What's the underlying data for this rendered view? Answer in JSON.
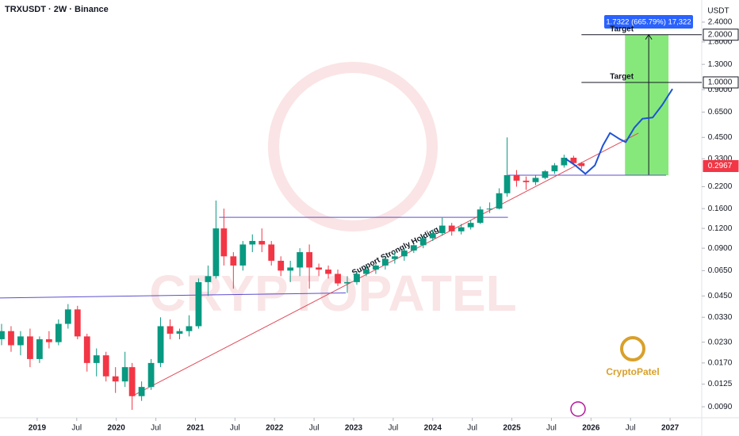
{
  "chart_data": {
    "type": "candlestick",
    "title": "TRXUSDT · 2W · Binance",
    "axis_unit": "USDT",
    "log_scale": true,
    "up_color": "#089981",
    "down_color": "#f23645",
    "x": [
      2018.55,
      2018.67,
      2018.79,
      2018.91,
      2019.03,
      2019.15,
      2019.27,
      2019.39,
      2019.51,
      2019.63,
      2019.75,
      2019.87,
      2019.99,
      2020.11,
      2020.2,
      2020.32,
      2020.44,
      2020.56,
      2020.68,
      2020.8,
      2020.92,
      2021.04,
      2021.16,
      2021.26,
      2021.36,
      2021.48,
      2021.6,
      2021.72,
      2021.84,
      2021.96,
      2022.08,
      2022.2,
      2022.32,
      2022.44,
      2022.56,
      2022.68,
      2022.8,
      2022.92,
      2023.04,
      2023.16,
      2023.28,
      2023.4,
      2023.52,
      2023.64,
      2023.76,
      2023.88,
      2024.0,
      2024.12,
      2024.24,
      2024.36,
      2024.48,
      2024.6,
      2024.72,
      2024.84,
      2024.94,
      2025.06,
      2025.18,
      2025.3,
      2025.42,
      2025.54,
      2025.66,
      2025.78,
      2025.88
    ],
    "candles": [
      [
        0.024,
        0.03,
        0.022,
        0.027
      ],
      [
        0.027,
        0.029,
        0.02,
        0.022
      ],
      [
        0.022,
        0.027,
        0.019,
        0.025
      ],
      [
        0.025,
        0.028,
        0.016,
        0.018
      ],
      [
        0.018,
        0.025,
        0.017,
        0.024
      ],
      [
        0.024,
        0.027,
        0.021,
        0.023
      ],
      [
        0.023,
        0.032,
        0.022,
        0.03
      ],
      [
        0.03,
        0.04,
        0.028,
        0.037
      ],
      [
        0.037,
        0.039,
        0.024,
        0.025
      ],
      [
        0.025,
        0.026,
        0.015,
        0.017
      ],
      [
        0.017,
        0.021,
        0.014,
        0.019
      ],
      [
        0.019,
        0.02,
        0.013,
        0.014
      ],
      [
        0.014,
        0.016,
        0.011,
        0.013
      ],
      [
        0.013,
        0.02,
        0.012,
        0.016
      ],
      [
        0.016,
        0.017,
        0.0086,
        0.0105
      ],
      [
        0.0105,
        0.013,
        0.0098,
        0.012
      ],
      [
        0.012,
        0.018,
        0.0115,
        0.017
      ],
      [
        0.017,
        0.033,
        0.016,
        0.029
      ],
      [
        0.029,
        0.032,
        0.024,
        0.026
      ],
      [
        0.026,
        0.028,
        0.024,
        0.027
      ],
      [
        0.027,
        0.034,
        0.025,
        0.029
      ],
      [
        0.029,
        0.058,
        0.028,
        0.055
      ],
      [
        0.055,
        0.07,
        0.045,
        0.06
      ],
      [
        0.06,
        0.18,
        0.058,
        0.12
      ],
      [
        0.12,
        0.16,
        0.07,
        0.08
      ],
      [
        0.08,
        0.085,
        0.05,
        0.07
      ],
      [
        0.07,
        0.1,
        0.065,
        0.095
      ],
      [
        0.095,
        0.11,
        0.085,
        0.1
      ],
      [
        0.1,
        0.12,
        0.085,
        0.095
      ],
      [
        0.095,
        0.1,
        0.07,
        0.075
      ],
      [
        0.075,
        0.08,
        0.06,
        0.065
      ],
      [
        0.065,
        0.075,
        0.055,
        0.068
      ],
      [
        0.068,
        0.09,
        0.06,
        0.085
      ],
      [
        0.085,
        0.095,
        0.05,
        0.068
      ],
      [
        0.068,
        0.072,
        0.06,
        0.066
      ],
      [
        0.066,
        0.07,
        0.058,
        0.062
      ],
      [
        0.062,
        0.066,
        0.052,
        0.054
      ],
      [
        0.054,
        0.06,
        0.047,
        0.055
      ],
      [
        0.055,
        0.064,
        0.053,
        0.062
      ],
      [
        0.062,
        0.07,
        0.06,
        0.066
      ],
      [
        0.066,
        0.072,
        0.062,
        0.07
      ],
      [
        0.07,
        0.08,
        0.066,
        0.077
      ],
      [
        0.077,
        0.086,
        0.072,
        0.08
      ],
      [
        0.08,
        0.09,
        0.075,
        0.087
      ],
      [
        0.087,
        0.096,
        0.084,
        0.094
      ],
      [
        0.094,
        0.108,
        0.09,
        0.104
      ],
      [
        0.104,
        0.118,
        0.1,
        0.112
      ],
      [
        0.112,
        0.14,
        0.108,
        0.125
      ],
      [
        0.125,
        0.13,
        0.108,
        0.115
      ],
      [
        0.115,
        0.128,
        0.11,
        0.122
      ],
      [
        0.122,
        0.135,
        0.118,
        0.13
      ],
      [
        0.13,
        0.165,
        0.128,
        0.158
      ],
      [
        0.158,
        0.175,
        0.15,
        0.16
      ],
      [
        0.16,
        0.215,
        0.158,
        0.2
      ],
      [
        0.2,
        0.45,
        0.19,
        0.26
      ],
      [
        0.26,
        0.28,
        0.22,
        0.24
      ],
      [
        0.24,
        0.255,
        0.21,
        0.235
      ],
      [
        0.235,
        0.26,
        0.225,
        0.25
      ],
      [
        0.25,
        0.28,
        0.245,
        0.275
      ],
      [
        0.275,
        0.31,
        0.265,
        0.3
      ],
      [
        0.3,
        0.35,
        0.29,
        0.335
      ],
      [
        0.335,
        0.345,
        0.3,
        0.31
      ],
      [
        0.31,
        0.315,
        0.285,
        0.2967
      ]
    ],
    "xlim": [
      2018.53,
      2027.4
    ],
    "ylim": [
      0.00767,
      3.31
    ],
    "xticks": [
      {
        "value": 2019,
        "label": "2019"
      },
      {
        "value": 2019.5,
        "label": "Jul"
      },
      {
        "value": 2020,
        "label": "2020"
      },
      {
        "value": 2020.5,
        "label": "Jul"
      },
      {
        "value": 2021,
        "label": "2021"
      },
      {
        "value": 2021.5,
        "label": "Jul"
      },
      {
        "value": 2022,
        "label": "2022"
      },
      {
        "value": 2022.5,
        "label": "Jul"
      },
      {
        "value": 2023,
        "label": "2023"
      },
      {
        "value": 2023.5,
        "label": "Jul"
      },
      {
        "value": 2024,
        "label": "2024"
      },
      {
        "value": 2024.5,
        "label": "Jul"
      },
      {
        "value": 2025,
        "label": "2025"
      },
      {
        "value": 2025.5,
        "label": "Jul"
      },
      {
        "value": 2026,
        "label": "2026"
      },
      {
        "value": 2026.5,
        "label": "Jul"
      },
      {
        "value": 2027,
        "label": "2027"
      }
    ],
    "yticks": [
      {
        "value": 2.4,
        "label": "2.4000"
      },
      {
        "value": 1.8,
        "label": "1.8000"
      },
      {
        "value": 1.3,
        "label": "1.3000"
      },
      {
        "value": 0.9,
        "label": "0.9000"
      },
      {
        "value": 0.65,
        "label": "0.6500"
      },
      {
        "value": 0.45,
        "label": "0.4500"
      },
      {
        "value": 0.33,
        "label": "0.3300"
      },
      {
        "value": 0.22,
        "label": "0.2200"
      },
      {
        "value": 0.16,
        "label": "0.1600"
      },
      {
        "value": 0.12,
        "label": "0.1200"
      },
      {
        "value": 0.09,
        "label": "0.0900"
      },
      {
        "value": 0.065,
        "label": "0.0650"
      },
      {
        "value": 0.045,
        "label": "0.0450"
      },
      {
        "value": 0.033,
        "label": "0.0330"
      },
      {
        "value": 0.023,
        "label": "0.0230"
      },
      {
        "value": 0.017,
        "label": "0.0170"
      },
      {
        "value": 0.0125,
        "label": "0.0125"
      },
      {
        "value": 0.009,
        "label": "0.0090"
      }
    ],
    "price_labels": [
      {
        "value": 2.0,
        "label": "2.0000",
        "color": "#131722"
      },
      {
        "value": 1.0,
        "label": "1.0000",
        "color": "#131722"
      },
      {
        "value": 0.2967,
        "label": "0.2967",
        "color": "#f23645"
      }
    ],
    "lines": [
      {
        "name": "support",
        "color": "#5b4fcf",
        "x": [
          2018.53,
          2022.9
        ],
        "values": [
          0.0437,
          0.047
        ]
      },
      {
        "name": "resistance",
        "color": "#5b4fcf",
        "x": [
          2021.3,
          2024.95
        ],
        "values": [
          0.141,
          0.141
        ]
      },
      {
        "name": "base",
        "color": "#5b4fcf",
        "x": [
          2024.95,
          2026.95
        ],
        "values": [
          0.26,
          0.26
        ]
      },
      {
        "name": "trendline",
        "color": "#e04b5a",
        "x": [
          2020.2,
          2026.6
        ],
        "values": [
          0.0105,
          0.479
        ]
      },
      {
        "name": "target-2",
        "color": "#131722",
        "x": [
          2025.88,
          2027.4
        ],
        "values": [
          2.0,
          2.0
        ]
      },
      {
        "name": "target-1",
        "color": "#131722",
        "x": [
          2025.88,
          2027.4
        ],
        "values": [
          1.0,
          1.0
        ]
      }
    ],
    "targets": [
      {
        "label": "Target",
        "line": 4
      },
      {
        "label": "Target",
        "line": 5
      }
    ],
    "trend_label": {
      "label": "Support Strongly Holding",
      "line": 3
    },
    "projection": {
      "color": "#1e53d6",
      "x": [
        2025.68,
        2025.8,
        2025.93,
        2026.05,
        2026.15,
        2026.24,
        2026.36,
        2026.44,
        2026.55,
        2026.65,
        2026.78,
        2026.9,
        2027.03
      ],
      "values": [
        0.33,
        0.3,
        0.265,
        0.3,
        0.4,
        0.48,
        0.44,
        0.42,
        0.52,
        0.59,
        0.6,
        0.72,
        0.91
      ]
    },
    "range_box": {
      "color": "#5ee04f",
      "x": [
        2026.43,
        2026.98
      ],
      "values": [
        0.26,
        2.0
      ],
      "arrow_x": 2026.73,
      "measure": "1.7322 (665.79%) 17,322"
    },
    "watermark": "CRYPTOPATEL",
    "logo_text": "CryptoPatel"
  }
}
